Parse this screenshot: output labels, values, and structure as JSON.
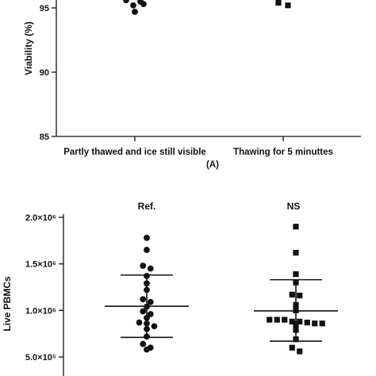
{
  "chart_data": [
    {
      "type": "scatter",
      "panel_label": "(A)",
      "ylabel": "Viability (%)",
      "ylim": [
        85,
        97
      ],
      "yticks": [
        "85",
        "90",
        "95"
      ],
      "ytick_values": [
        85,
        90,
        95
      ],
      "categories": [
        "Partly thawed and ice still visible",
        "Thawing for 5 minuttes"
      ],
      "series": [
        {
          "marker": "circle",
          "values": [
            95.6,
            95.5,
            95.3,
            95.2,
            94.7
          ]
        },
        {
          "marker": "square",
          "values": [
            95.4,
            95.2
          ]
        }
      ]
    },
    {
      "type": "scatter",
      "ylabel": "Live PBMCs",
      "ylim": [
        500000,
        2000000
      ],
      "yticks": [
        "5.0×10⁵",
        "1.0×10⁶",
        "1.5×10⁶",
        "2.0×10⁶"
      ],
      "ytick_values": [
        500000,
        1000000,
        1500000,
        2000000
      ],
      "categories": [
        "Ref.",
        "NS"
      ],
      "series": [
        {
          "marker": "circle",
          "mean": 1045000,
          "sd_upper": 1380000,
          "sd_lower": 710000,
          "values": [
            1780000,
            1650000,
            1480000,
            1450000,
            1370000,
            1290000,
            1220000,
            1120000,
            1090000,
            1040000,
            990000,
            960000,
            920000,
            870000,
            860000,
            830000,
            800000,
            720000,
            640000,
            600000,
            580000
          ]
        },
        {
          "marker": "square",
          "mean": 995000,
          "sd_upper": 1330000,
          "sd_lower": 670000,
          "values": [
            1900000,
            1620000,
            1390000,
            1300000,
            1170000,
            1160000,
            1060000,
            1000000,
            900000,
            900000,
            880000,
            870000,
            860000,
            850000,
            860000,
            880000,
            900000,
            790000,
            690000,
            600000,
            560000
          ]
        }
      ]
    }
  ]
}
